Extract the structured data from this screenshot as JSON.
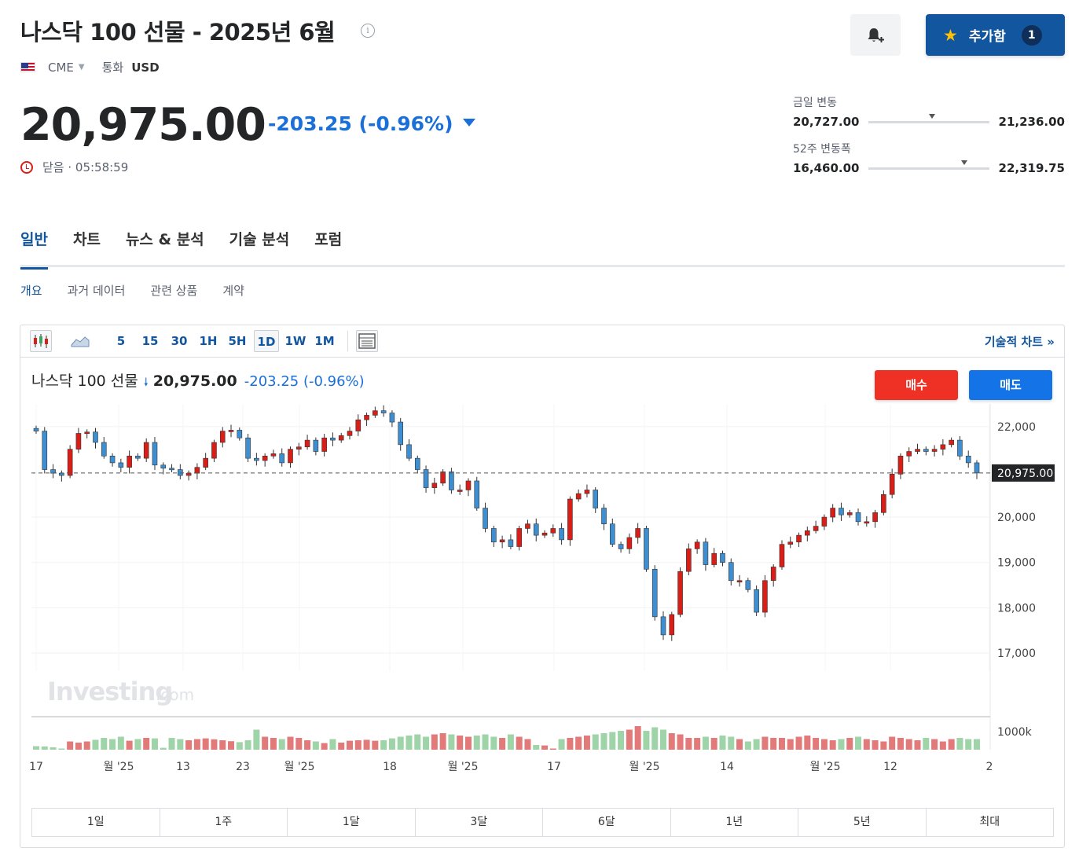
{
  "header": {
    "title": "나스닥 100 선물 - 2025년 6월",
    "exchange": "CME",
    "currency_label": "통화",
    "currency": "USD",
    "add_label": "추가함",
    "add_count": "1"
  },
  "quote": {
    "price": "20,975.00",
    "change": "-203.25 (-0.96%)",
    "status": "닫음 · 05:58:59"
  },
  "ranges": {
    "day": {
      "label": "금일 변동",
      "low": "20,727.00",
      "high": "21,236.00",
      "position": 0.5
    },
    "week52": {
      "label": "52주 변동폭",
      "low": "16,460.00",
      "high": "22,319.75",
      "position": 0.77
    }
  },
  "tabs": [
    "일반",
    "차트",
    "뉴스 & 분석",
    "기술 분석",
    "포럼"
  ],
  "subtabs": [
    "개요",
    "과거 데이터",
    "관련 상품",
    "계약"
  ],
  "toolbar": {
    "timeframes": [
      "5",
      "15",
      "30",
      "1H",
      "5H",
      "1D",
      "1W",
      "1M"
    ],
    "selected": "1D",
    "tech_chart_label": "기술적 차트 »"
  },
  "chart_header": {
    "name": "나스닥 100 선물",
    "price": "20,975.00",
    "change": "-203.25 (-0.96%)",
    "buy_label": "매수",
    "sell_label": "매도"
  },
  "periods": [
    "1일",
    "1주",
    "1달",
    "3달",
    "6달",
    "1년",
    "5년",
    "최대"
  ],
  "colors": {
    "up": "#d91e18",
    "down": "#3d8fd1",
    "accent": "#1256a0"
  },
  "chart_data": {
    "type": "candlestick",
    "ylim": [
      16600,
      22500
    ],
    "yticks": [
      "22,000",
      "20,000",
      "19,000",
      "18,000",
      "17,000"
    ],
    "ytick_values": [
      22000,
      20000,
      19000,
      18000,
      17000
    ],
    "last_price": 20975,
    "last_price_label": "20,975.00",
    "volume_label": "1000k",
    "x_ticks": [
      "17",
      "월 '25",
      "13",
      "23",
      "월 '25",
      "18",
      "월 '25",
      "17",
      "월 '25",
      "14",
      "월 '25",
      "12",
      "2"
    ],
    "watermark": "Investing",
    "watermark_suffix": ".com",
    "closes": [
      21900,
      21050,
      20970,
      20920,
      21500,
      21850,
      21880,
      21650,
      21350,
      21200,
      21100,
      21350,
      21300,
      21650,
      21150,
      21080,
      21050,
      20920,
      20970,
      21100,
      21300,
      21650,
      21900,
      21920,
      21750,
      21300,
      21250,
      21350,
      21400,
      21200,
      21500,
      21550,
      21700,
      21450,
      21750,
      21700,
      21800,
      21900,
      22150,
      22250,
      22350,
      22300,
      22100,
      21600,
      21300,
      21050,
      20650,
      20750,
      21000,
      20600,
      20600,
      20800,
      20200,
      19750,
      19450,
      19500,
      19350,
      19750,
      19850,
      19600,
      19650,
      19750,
      19500,
      20400,
      20520,
      20600,
      20200,
      19850,
      19400,
      19300,
      19550,
      19750,
      18850,
      17800,
      17400,
      17850,
      18800,
      19300,
      19450,
      18950,
      19200,
      19000,
      18600,
      18600,
      18400,
      17900,
      18600,
      18900,
      19400,
      19450,
      19600,
      19700,
      19800,
      20000,
      20200,
      20050,
      20100,
      19900,
      19900,
      20100,
      20500,
      20950,
      21350,
      21450,
      21500,
      21450,
      21500,
      21600,
      21700,
      21350,
      21200,
      20975
    ],
    "volumes": [
      0.15,
      0.14,
      0.1,
      0.05,
      0.35,
      0.3,
      0.35,
      0.42,
      0.5,
      0.45,
      0.55,
      0.38,
      0.45,
      0.5,
      0.48,
      0.08,
      0.5,
      0.45,
      0.4,
      0.45,
      0.48,
      0.44,
      0.4,
      0.36,
      0.32,
      0.4,
      0.85,
      0.55,
      0.5,
      0.45,
      0.55,
      0.5,
      0.4,
      0.35,
      0.28,
      0.45,
      0.3,
      0.38,
      0.4,
      0.42,
      0.38,
      0.4,
      0.48,
      0.55,
      0.6,
      0.65,
      0.55,
      0.65,
      0.7,
      0.65,
      0.6,
      0.55,
      0.6,
      0.65,
      0.55,
      0.5,
      0.65,
      0.55,
      0.45,
      0.2,
      0.18,
      0.05,
      0.45,
      0.5,
      0.55,
      0.6,
      0.65,
      0.7,
      0.75,
      0.8,
      0.85,
      1.0,
      0.8,
      0.95,
      0.85,
      0.7,
      0.65,
      0.5,
      0.5,
      0.55,
      0.5,
      0.6,
      0.55,
      0.45,
      0.35,
      0.45,
      0.55,
      0.5,
      0.5,
      0.45,
      0.55,
      0.6,
      0.5,
      0.45,
      0.4,
      0.45,
      0.5,
      0.55,
      0.45,
      0.4,
      0.35,
      0.55,
      0.5,
      0.45,
      0.4,
      0.5,
      0.45,
      0.35,
      0.45,
      0.5,
      0.45,
      0.45
    ]
  }
}
